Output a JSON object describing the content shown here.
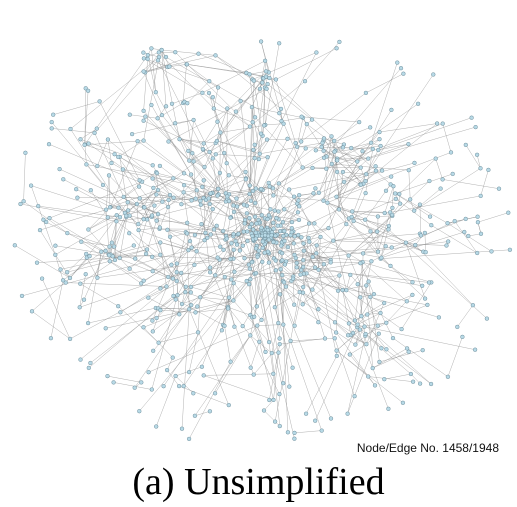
{
  "graph": {
    "stats_text": "Node/Edge No. 1458/1948",
    "caption": "(a) Unsimplified",
    "node_fill": "#b7d9e6",
    "node_stroke": "#6f8f9c",
    "edge_color": "#8a8a8a"
  }
}
